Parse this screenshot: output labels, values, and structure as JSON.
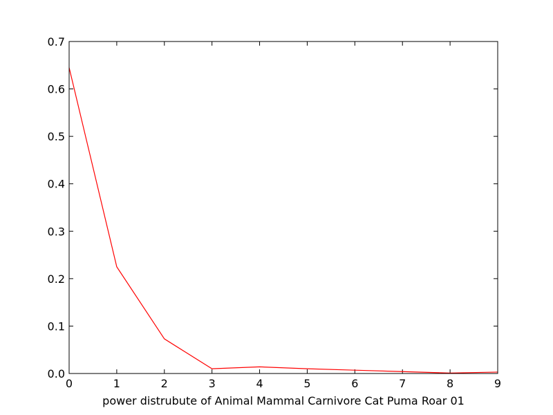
{
  "chart_data": {
    "type": "line",
    "title": "",
    "xlabel": "power distrubute of Animal Mammal Carnivore Cat Puma Roar 01",
    "ylabel": "",
    "xlim": [
      0,
      9
    ],
    "ylim": [
      0,
      0.7
    ],
    "xticks": [
      0,
      1,
      2,
      3,
      4,
      5,
      6,
      7,
      8,
      9
    ],
    "yticks": [
      0.0,
      0.1,
      0.2,
      0.3,
      0.4,
      0.5,
      0.6,
      0.7
    ],
    "ytick_labels": [
      "0.0",
      "0.1",
      "0.2",
      "0.3",
      "0.4",
      "0.5",
      "0.6",
      "0.7"
    ],
    "grid": false,
    "legend": "none",
    "series": [
      {
        "color": "#ff0000",
        "x": [
          0,
          1,
          2,
          3,
          4,
          5,
          6,
          7,
          8,
          9
        ],
        "y": [
          0.645,
          0.225,
          0.073,
          0.01,
          0.014,
          0.01,
          0.007,
          0.004,
          0.001,
          0.003
        ]
      }
    ]
  }
}
